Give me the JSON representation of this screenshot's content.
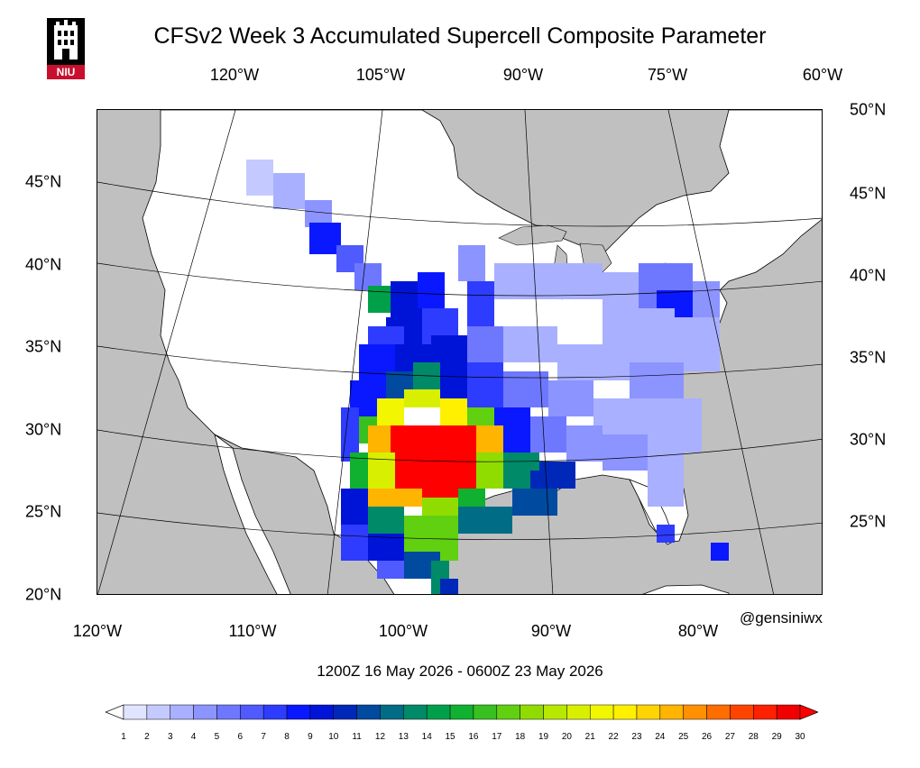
{
  "title": "CFSv2 Week 3 Accumulated Supercell Composite Parameter",
  "logo_text": "NIU",
  "credit": "@gensiniwx",
  "date_range": "1200Z 16  May  2026   - 0600Z 23  May  2026",
  "lon_labels_top": [
    "120°W",
    "105°W",
    "90°W",
    "75°W",
    "60°W"
  ],
  "lon_labels_bottom": [
    "120°W",
    "110°W",
    "100°W",
    "90°W",
    "80°W"
  ],
  "lat_labels_left": [
    "45°N",
    "40°N",
    "35°N",
    "30°N",
    "25°N",
    "20°N"
  ],
  "lat_labels_right": [
    "50°N",
    "45°N",
    "40°N",
    "35°N",
    "30°N",
    "25°N"
  ],
  "colorbar": {
    "labels": [
      "1",
      "2",
      "3",
      "4",
      "5",
      "6",
      "7",
      "8",
      "9",
      "10",
      "11",
      "12",
      "13",
      "14",
      "15",
      "16",
      "17",
      "18",
      "19",
      "20",
      "21",
      "22",
      "23",
      "24",
      "25",
      "26",
      "27",
      "28",
      "29",
      "30"
    ],
    "colors": [
      "#ffffff",
      "#e0e4ff",
      "#c4caff",
      "#a9b0ff",
      "#8c94ff",
      "#6e78ff",
      "#4f5aff",
      "#2e3cff",
      "#0a18ff",
      "#0014d8",
      "#0028b8",
      "#004aa0",
      "#006c86",
      "#008a68",
      "#00a04a",
      "#10b030",
      "#38c020",
      "#60d010",
      "#90dc00",
      "#b8e800",
      "#d8f000",
      "#f2f600",
      "#fff000",
      "#ffd400",
      "#ffb400",
      "#ff9000",
      "#ff6c00",
      "#ff4400",
      "#ff2000",
      "#f00000",
      "#ff0000"
    ],
    "range": [
      1,
      30
    ]
  },
  "colors": {
    "land": "#ffffff",
    "ocean": "#c0c0c0",
    "borders": "#000000"
  }
}
